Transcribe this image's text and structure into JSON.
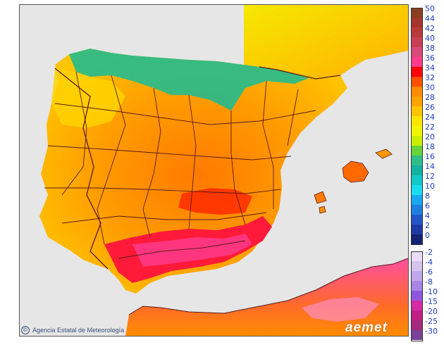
{
  "map": {
    "title": "",
    "colors": {
      "sea": "#e6e6e6",
      "border": "#5a1a1a"
    },
    "regions": [
      {
        "name": "iberian-peninsula",
        "fill": "#ff9a00"
      },
      {
        "name": "north-africa",
        "fill": "#ff6a2a"
      },
      {
        "name": "france",
        "fill": "#f4e200"
      },
      {
        "name": "balearic-islands",
        "fill": "#ff5e00"
      }
    ]
  },
  "legend": {
    "positive": [
      {
        "label": "50",
        "color": "#8b3f20"
      },
      {
        "label": "44",
        "color": "#a5352b"
      },
      {
        "label": "42",
        "color": "#b83a3a"
      },
      {
        "label": "40",
        "color": "#c54052"
      },
      {
        "label": "38",
        "color": "#d84a78"
      },
      {
        "label": "36",
        "color": "#ff3c8c"
      },
      {
        "label": "34",
        "color": "#ff0000"
      },
      {
        "label": "32",
        "color": "#ff4f00"
      },
      {
        "label": "30",
        "color": "#ff8c00"
      },
      {
        "label": "28",
        "color": "#ffa300"
      },
      {
        "label": "26",
        "color": "#ffc400"
      },
      {
        "label": "24",
        "color": "#ffe600"
      },
      {
        "label": "22",
        "color": "#f1f600"
      },
      {
        "label": "20",
        "color": "#c9ee00"
      },
      {
        "label": "18",
        "color": "#66d43a"
      },
      {
        "label": "16",
        "color": "#2fbe8a"
      },
      {
        "label": "14",
        "color": "#14b3a3"
      },
      {
        "label": "12",
        "color": "#12c8c8"
      },
      {
        "label": "10",
        "color": "#18dcf0"
      },
      {
        "label": "8",
        "color": "#18a9f0"
      },
      {
        "label": "6",
        "color": "#1f7fe0"
      },
      {
        "label": "4",
        "color": "#2456c8"
      },
      {
        "label": "2",
        "color": "#1d3aa6"
      },
      {
        "label": "0",
        "color": "#142273"
      }
    ],
    "negative": [
      {
        "label": "-2",
        "color": "#eadcf5"
      },
      {
        "label": "-4",
        "color": "#d6c2ef"
      },
      {
        "label": "-6",
        "color": "#c1a7ec"
      },
      {
        "label": "-8",
        "color": "#a784e6"
      },
      {
        "label": "-10",
        "color": "#8f56dc"
      },
      {
        "label": "-15",
        "color": "#d42aa4"
      },
      {
        "label": "-20",
        "color": "#c01f86"
      },
      {
        "label": "-25",
        "color": "#a52a7f"
      },
      {
        "label": "-30",
        "color": "#7a3f99"
      }
    ]
  },
  "footer": {
    "credit": "Agencia Estatal de Meteorología",
    "brand": "aemet"
  }
}
